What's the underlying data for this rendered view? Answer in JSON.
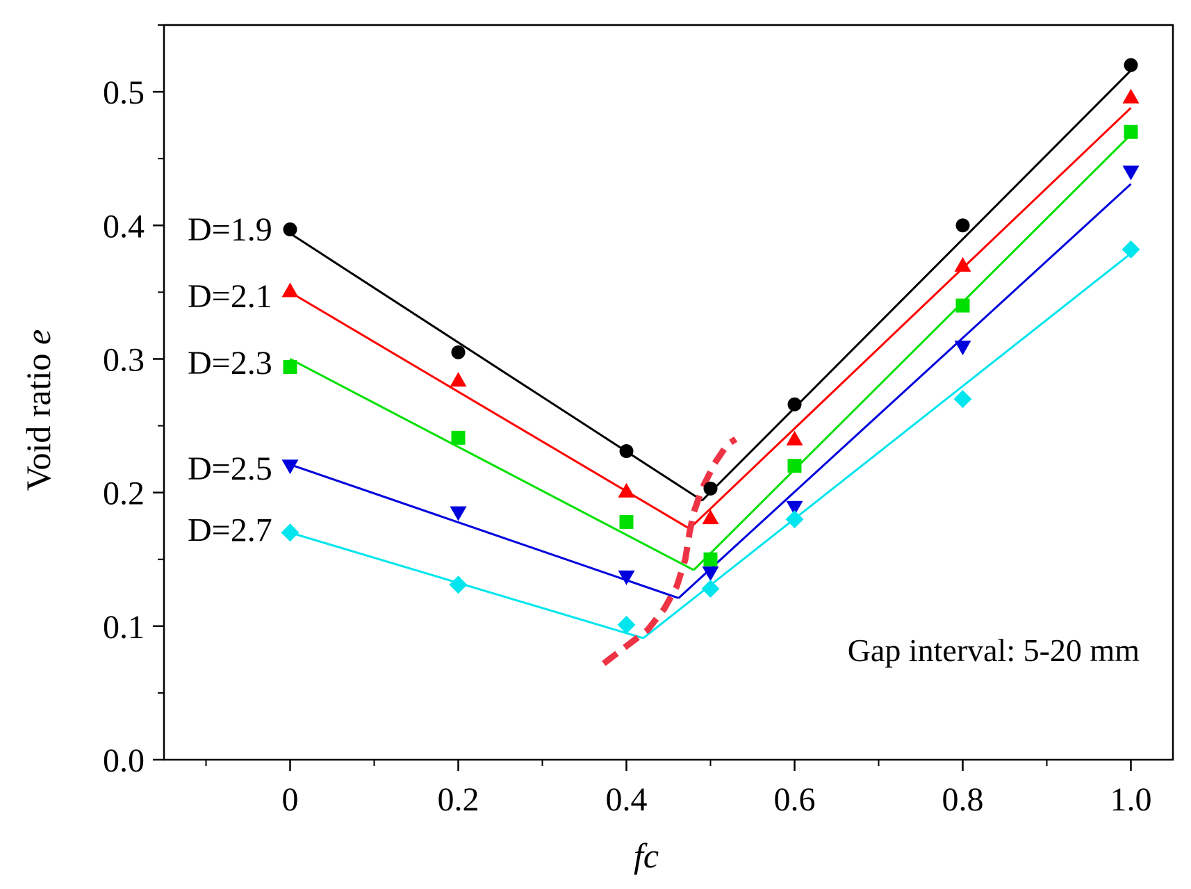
{
  "chart_data": {
    "type": "scatter",
    "title": "",
    "xlabel": "fc",
    "ylabel_text": "Void ratio ",
    "ylabel_var": "e",
    "xlim": [
      -0.15,
      1.05
    ],
    "ylim": [
      0.0,
      0.55
    ],
    "xticks": [
      0,
      0.2,
      0.4,
      0.6,
      0.8,
      1.0
    ],
    "xtick_labels": [
      "0",
      "0.2",
      "0.4",
      "0.6",
      "0.8",
      "1.0"
    ],
    "yticks": [
      0.0,
      0.1,
      0.2,
      0.3,
      0.4,
      0.5
    ],
    "ytick_labels": [
      "0.0",
      "0.1",
      "0.2",
      "0.3",
      "0.4",
      "0.5"
    ],
    "annotation": "Gap interval: 5-20 mm",
    "series": [
      {
        "name": "D=1.9",
        "color": "#000000",
        "marker": "circle",
        "x": [
          0,
          0.2,
          0.4,
          0.5,
          0.6,
          0.8,
          1.0
        ],
        "y": [
          0.397,
          0.305,
          0.231,
          0.203,
          0.266,
          0.4,
          0.52
        ],
        "fit_left": [
          [
            0,
            0.394
          ],
          [
            0.49,
            0.194
          ]
        ],
        "fit_right": [
          [
            0.49,
            0.194
          ],
          [
            1.0,
            0.516
          ]
        ]
      },
      {
        "name": "D=2.1",
        "color": "#ff0000",
        "marker": "triangle-up",
        "x": [
          0,
          0.2,
          0.4,
          0.5,
          0.6,
          0.8,
          1.0
        ],
        "y": [
          0.351,
          0.284,
          0.201,
          0.181,
          0.24,
          0.37,
          0.496
        ],
        "fit_left": [
          [
            0,
            0.35
          ],
          [
            0.475,
            0.173
          ]
        ],
        "fit_right": [
          [
            0.475,
            0.173
          ],
          [
            1.0,
            0.488
          ]
        ]
      },
      {
        "name": "D=2.3",
        "color": "#00e000",
        "marker": "square",
        "x": [
          0,
          0.2,
          0.4,
          0.5,
          0.6,
          0.8,
          1.0
        ],
        "y": [
          0.294,
          0.241,
          0.178,
          0.15,
          0.22,
          0.34,
          0.47
        ],
        "fit_left": [
          [
            0,
            0.3
          ],
          [
            0.48,
            0.142
          ]
        ],
        "fit_right": [
          [
            0.48,
            0.142
          ],
          [
            1.0,
            0.468
          ]
        ]
      },
      {
        "name": "D=2.5",
        "color": "#0000dd",
        "marker": "triangle-down",
        "x": [
          0,
          0.2,
          0.4,
          0.5,
          0.6,
          0.8,
          1.0
        ],
        "y": [
          0.22,
          0.185,
          0.137,
          0.14,
          0.189,
          0.309,
          0.44
        ],
        "fit_left": [
          [
            0,
            0.221
          ],
          [
            0.462,
            0.121
          ]
        ],
        "fit_right": [
          [
            0.462,
            0.121
          ],
          [
            1.0,
            0.431
          ]
        ]
      },
      {
        "name": "D=2.7",
        "color": "#00e5ee",
        "marker": "diamond",
        "x": [
          0,
          0.2,
          0.4,
          0.5,
          0.6,
          0.8,
          1.0
        ],
        "y": [
          0.17,
          0.131,
          0.101,
          0.128,
          0.18,
          0.27,
          0.382
        ],
        "fit_left": [
          [
            0,
            0.17
          ],
          [
            0.42,
            0.091
          ]
        ],
        "fit_right": [
          [
            0.42,
            0.091
          ],
          [
            1.0,
            0.379
          ]
        ]
      }
    ],
    "transition_curve": {
      "color": "#ee3344",
      "style": "dashed",
      "x": [
        0.373,
        0.4,
        0.425,
        0.445,
        0.46,
        0.47,
        0.475,
        0.48,
        0.49,
        0.505,
        0.52,
        0.53
      ],
      "y": [
        0.072,
        0.085,
        0.097,
        0.113,
        0.13,
        0.15,
        0.17,
        0.185,
        0.203,
        0.222,
        0.236,
        0.24
      ]
    },
    "legend": "inline labels at left of each line"
  }
}
